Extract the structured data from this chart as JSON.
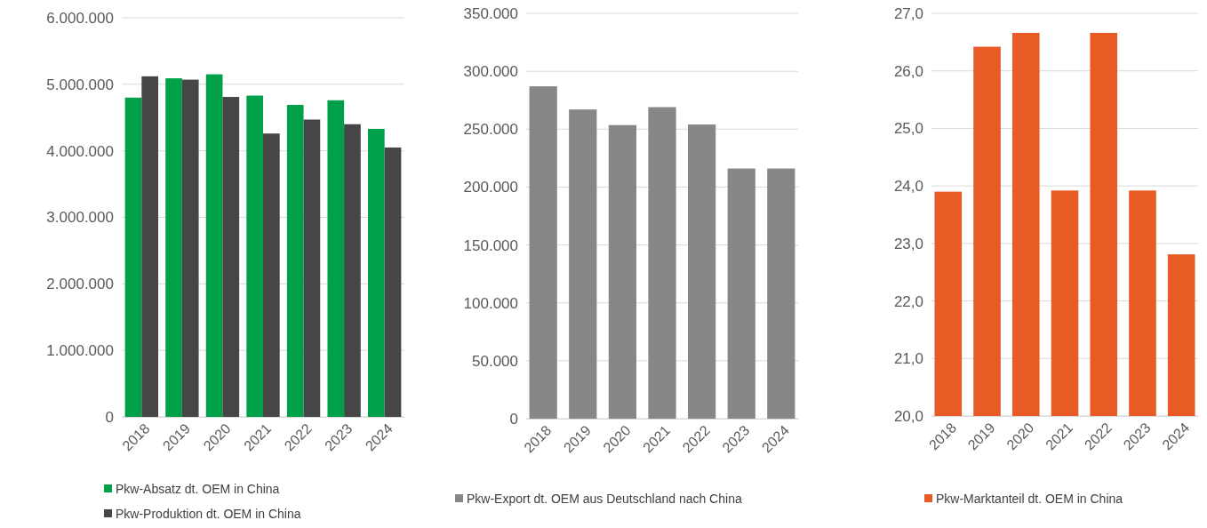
{
  "chart_data": [
    {
      "type": "bar",
      "categories": [
        "2018",
        "2019",
        "2020",
        "2021",
        "2022",
        "2023",
        "2024"
      ],
      "ylim": [
        0,
        6000000
      ],
      "yticks": [
        {
          "value": 0,
          "label": "0"
        },
        {
          "value": 1000000,
          "label": "1.000.000"
        },
        {
          "value": 2000000,
          "label": "2.000.000"
        },
        {
          "value": 3000000,
          "label": "3.000.000"
        },
        {
          "value": 4000000,
          "label": "4.000.000"
        },
        {
          "value": 5000000,
          "label": "5.000.000"
        },
        {
          "value": 6000000,
          "label": "6.000.000"
        }
      ],
      "grid": "y",
      "legend": "bottom",
      "series": [
        {
          "name": "Pkw-Absatz dt. OEM in China",
          "color": "#00a04b",
          "values": [
            4800000,
            5090000,
            5150000,
            4830000,
            4690000,
            4760000,
            4330000
          ]
        },
        {
          "name": "Pkw-Produktion dt. OEM in China",
          "color": "#464646",
          "values": [
            5120000,
            5070000,
            4810000,
            4260000,
            4470000,
            4400000,
            4050000
          ]
        }
      ]
    },
    {
      "type": "bar",
      "categories": [
        "2018",
        "2019",
        "2020",
        "2021",
        "2022",
        "2023",
        "2024"
      ],
      "ylim": [
        0,
        350000
      ],
      "yticks": [
        {
          "value": 0,
          "label": "0"
        },
        {
          "value": 50000,
          "label": "50.000"
        },
        {
          "value": 100000,
          "label": "100.000"
        },
        {
          "value": 150000,
          "label": "150.000"
        },
        {
          "value": 200000,
          "label": "200.000"
        },
        {
          "value": 250000,
          "label": "250.000"
        },
        {
          "value": 300000,
          "label": "300.000"
        },
        {
          "value": 350000,
          "label": "350.000"
        }
      ],
      "grid": "y",
      "legend": "bottom",
      "series": [
        {
          "name": "Pkw-Export dt. OEM aus Deutschland nach China",
          "color": "#878787",
          "values": [
            287000,
            267000,
            253500,
            269000,
            254000,
            216000,
            216000
          ]
        }
      ]
    },
    {
      "type": "bar",
      "categories": [
        "2018",
        "2019",
        "2020",
        "2021",
        "2022",
        "2023",
        "2024"
      ],
      "ylim": [
        20,
        27
      ],
      "yticks": [
        {
          "value": 20,
          "label": "20,0"
        },
        {
          "value": 21,
          "label": "21,0"
        },
        {
          "value": 22,
          "label": "22,0"
        },
        {
          "value": 23,
          "label": "23,0"
        },
        {
          "value": 24,
          "label": "24,0"
        },
        {
          "value": 25,
          "label": "25,0"
        },
        {
          "value": 26,
          "label": "26,0"
        },
        {
          "value": 27,
          "label": "27,0"
        }
      ],
      "grid": "y",
      "legend": "bottom",
      "series": [
        {
          "name": "Pkw-Marktanteil dt. OEM in China",
          "color": "#e95b24",
          "values": [
            23.9,
            26.42,
            26.66,
            23.92,
            26.66,
            23.92,
            22.81
          ]
        }
      ]
    }
  ]
}
